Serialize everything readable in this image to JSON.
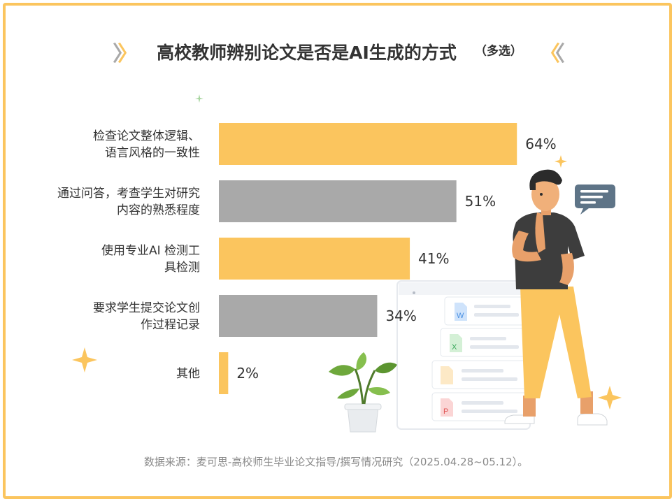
{
  "title": "高校教师辨别论文是否是AI生成的方式",
  "subtitle": "（多选）",
  "source": "数据来源：麦可思-高校师生毕业论文指导/撰写情况研究（2025.04.28~05.12）。",
  "colors": {
    "accent": "#fbc55e",
    "gray": "#a9a9a9",
    "text": "#333333",
    "source": "#8a8a8a"
  },
  "chart_data": {
    "type": "bar",
    "orientation": "horizontal",
    "unit": "%",
    "xlim": [
      0,
      100
    ],
    "categories": [
      [
        "检查论文整体逻辑、",
        "语言风格的一致性"
      ],
      [
        "通过问答，考查学生对研究",
        "内容的熟悉程度"
      ],
      [
        "使用专业AI 检测工",
        "具检测"
      ],
      [
        "要求学生提交论文创",
        "作过程记录"
      ],
      [
        "其他"
      ]
    ],
    "values": [
      64,
      51,
      41,
      34,
      2
    ],
    "value_labels": [
      "64%",
      "51%",
      "41%",
      "34%",
      "2%"
    ],
    "bar_colors": [
      "#fbc55e",
      "#a9a9a9",
      "#fbc55e",
      "#a9a9a9",
      "#fbc55e"
    ],
    "grid": false,
    "legend": "none"
  },
  "illustration": {
    "icons": [
      "sparkle-icon",
      "chat-bubble-icon",
      "word-file-icon",
      "excel-file-icon",
      "pdf-file-icon",
      "plant-icon",
      "thinking-person-icon"
    ]
  }
}
